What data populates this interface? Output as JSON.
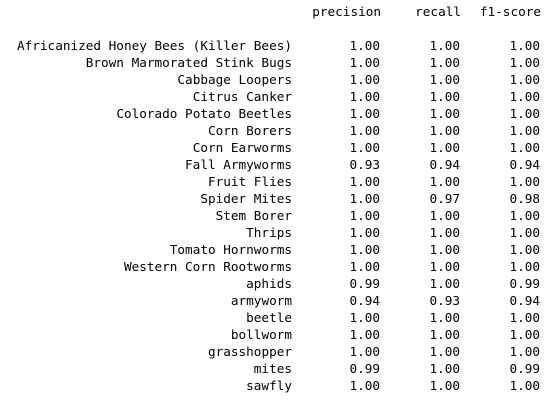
{
  "headers": {
    "precision": "precision",
    "recall": "recall",
    "f1_score": "f1-score"
  },
  "rows": [
    {
      "label": "Africanized Honey Bees (Killer Bees)",
      "precision": "1.00",
      "recall": "1.00",
      "f1": "1.00"
    },
    {
      "label": "Brown Marmorated Stink Bugs",
      "precision": "1.00",
      "recall": "1.00",
      "f1": "1.00"
    },
    {
      "label": "Cabbage Loopers",
      "precision": "1.00",
      "recall": "1.00",
      "f1": "1.00"
    },
    {
      "label": "Citrus Canker",
      "precision": "1.00",
      "recall": "1.00",
      "f1": "1.00"
    },
    {
      "label": "Colorado Potato Beetles",
      "precision": "1.00",
      "recall": "1.00",
      "f1": "1.00"
    },
    {
      "label": "Corn Borers",
      "precision": "1.00",
      "recall": "1.00",
      "f1": "1.00"
    },
    {
      "label": "Corn Earworms",
      "precision": "1.00",
      "recall": "1.00",
      "f1": "1.00"
    },
    {
      "label": "Fall Armyworms",
      "precision": "0.93",
      "recall": "0.94",
      "f1": "0.94"
    },
    {
      "label": "Fruit Flies",
      "precision": "1.00",
      "recall": "1.00",
      "f1": "1.00"
    },
    {
      "label": "Spider Mites",
      "precision": "1.00",
      "recall": "0.97",
      "f1": "0.98"
    },
    {
      "label": "Stem Borer",
      "precision": "1.00",
      "recall": "1.00",
      "f1": "1.00"
    },
    {
      "label": "Thrips",
      "precision": "1.00",
      "recall": "1.00",
      "f1": "1.00"
    },
    {
      "label": "Tomato Hornworms",
      "precision": "1.00",
      "recall": "1.00",
      "f1": "1.00"
    },
    {
      "label": "Western Corn Rootworms",
      "precision": "1.00",
      "recall": "1.00",
      "f1": "1.00"
    },
    {
      "label": "aphids",
      "precision": "0.99",
      "recall": "1.00",
      "f1": "0.99"
    },
    {
      "label": "armyworm",
      "precision": "0.94",
      "recall": "0.93",
      "f1": "0.94"
    },
    {
      "label": "beetle",
      "precision": "1.00",
      "recall": "1.00",
      "f1": "1.00"
    },
    {
      "label": "bollworm",
      "precision": "1.00",
      "recall": "1.00",
      "f1": "1.00"
    },
    {
      "label": "grasshopper",
      "precision": "1.00",
      "recall": "1.00",
      "f1": "1.00"
    },
    {
      "label": "mites",
      "precision": "0.99",
      "recall": "1.00",
      "f1": "0.99"
    },
    {
      "label": "sawfly",
      "precision": "1.00",
      "recall": "1.00",
      "f1": "1.00"
    }
  ]
}
